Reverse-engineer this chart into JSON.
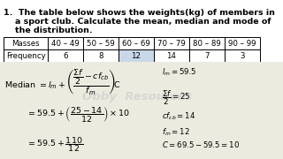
{
  "title_line1": "1.  The table below shows the weights(kg) of members in",
  "title_line2": "    a sport club. Calculate the mean, median and mode of",
  "title_line3": "    the distribution.",
  "col_headers": [
    "Masses",
    "40 – 49",
    "50 – 59",
    "60 – 69",
    "70 – 79",
    "80 – 89",
    "90 – 99"
  ],
  "row_label": "Frequency",
  "row_values": [
    "6",
    "8",
    "12",
    "14",
    "7",
    "3"
  ],
  "highlight_col": 3,
  "bg_color": "#f5f5ef",
  "white": "#ffffff",
  "highlight_bg": "#c8d8e8",
  "watermark": "Obby  Resources",
  "formula1_left": "Median $= l_m + \\left(\\dfrac{\\Sigma f}{2} - cf_{cb}\\right)$C",
  "formula1_denom": "$f_m$",
  "formula2": "$= 59.5 + \\left(\\dfrac{25 - 14}{12}\\right) \\times 10$",
  "formula3": "$= 59.5 + \\dfrac{110}{12}$",
  "side1": "$l_m = 59.5$",
  "side2": "$\\dfrac{\\Sigma f}{2} = 25$",
  "side3": "$cf_{cb} = 14$",
  "side4": "$f_m = 12$",
  "side5": "$C = 69.5 - 59.5 = 10$"
}
